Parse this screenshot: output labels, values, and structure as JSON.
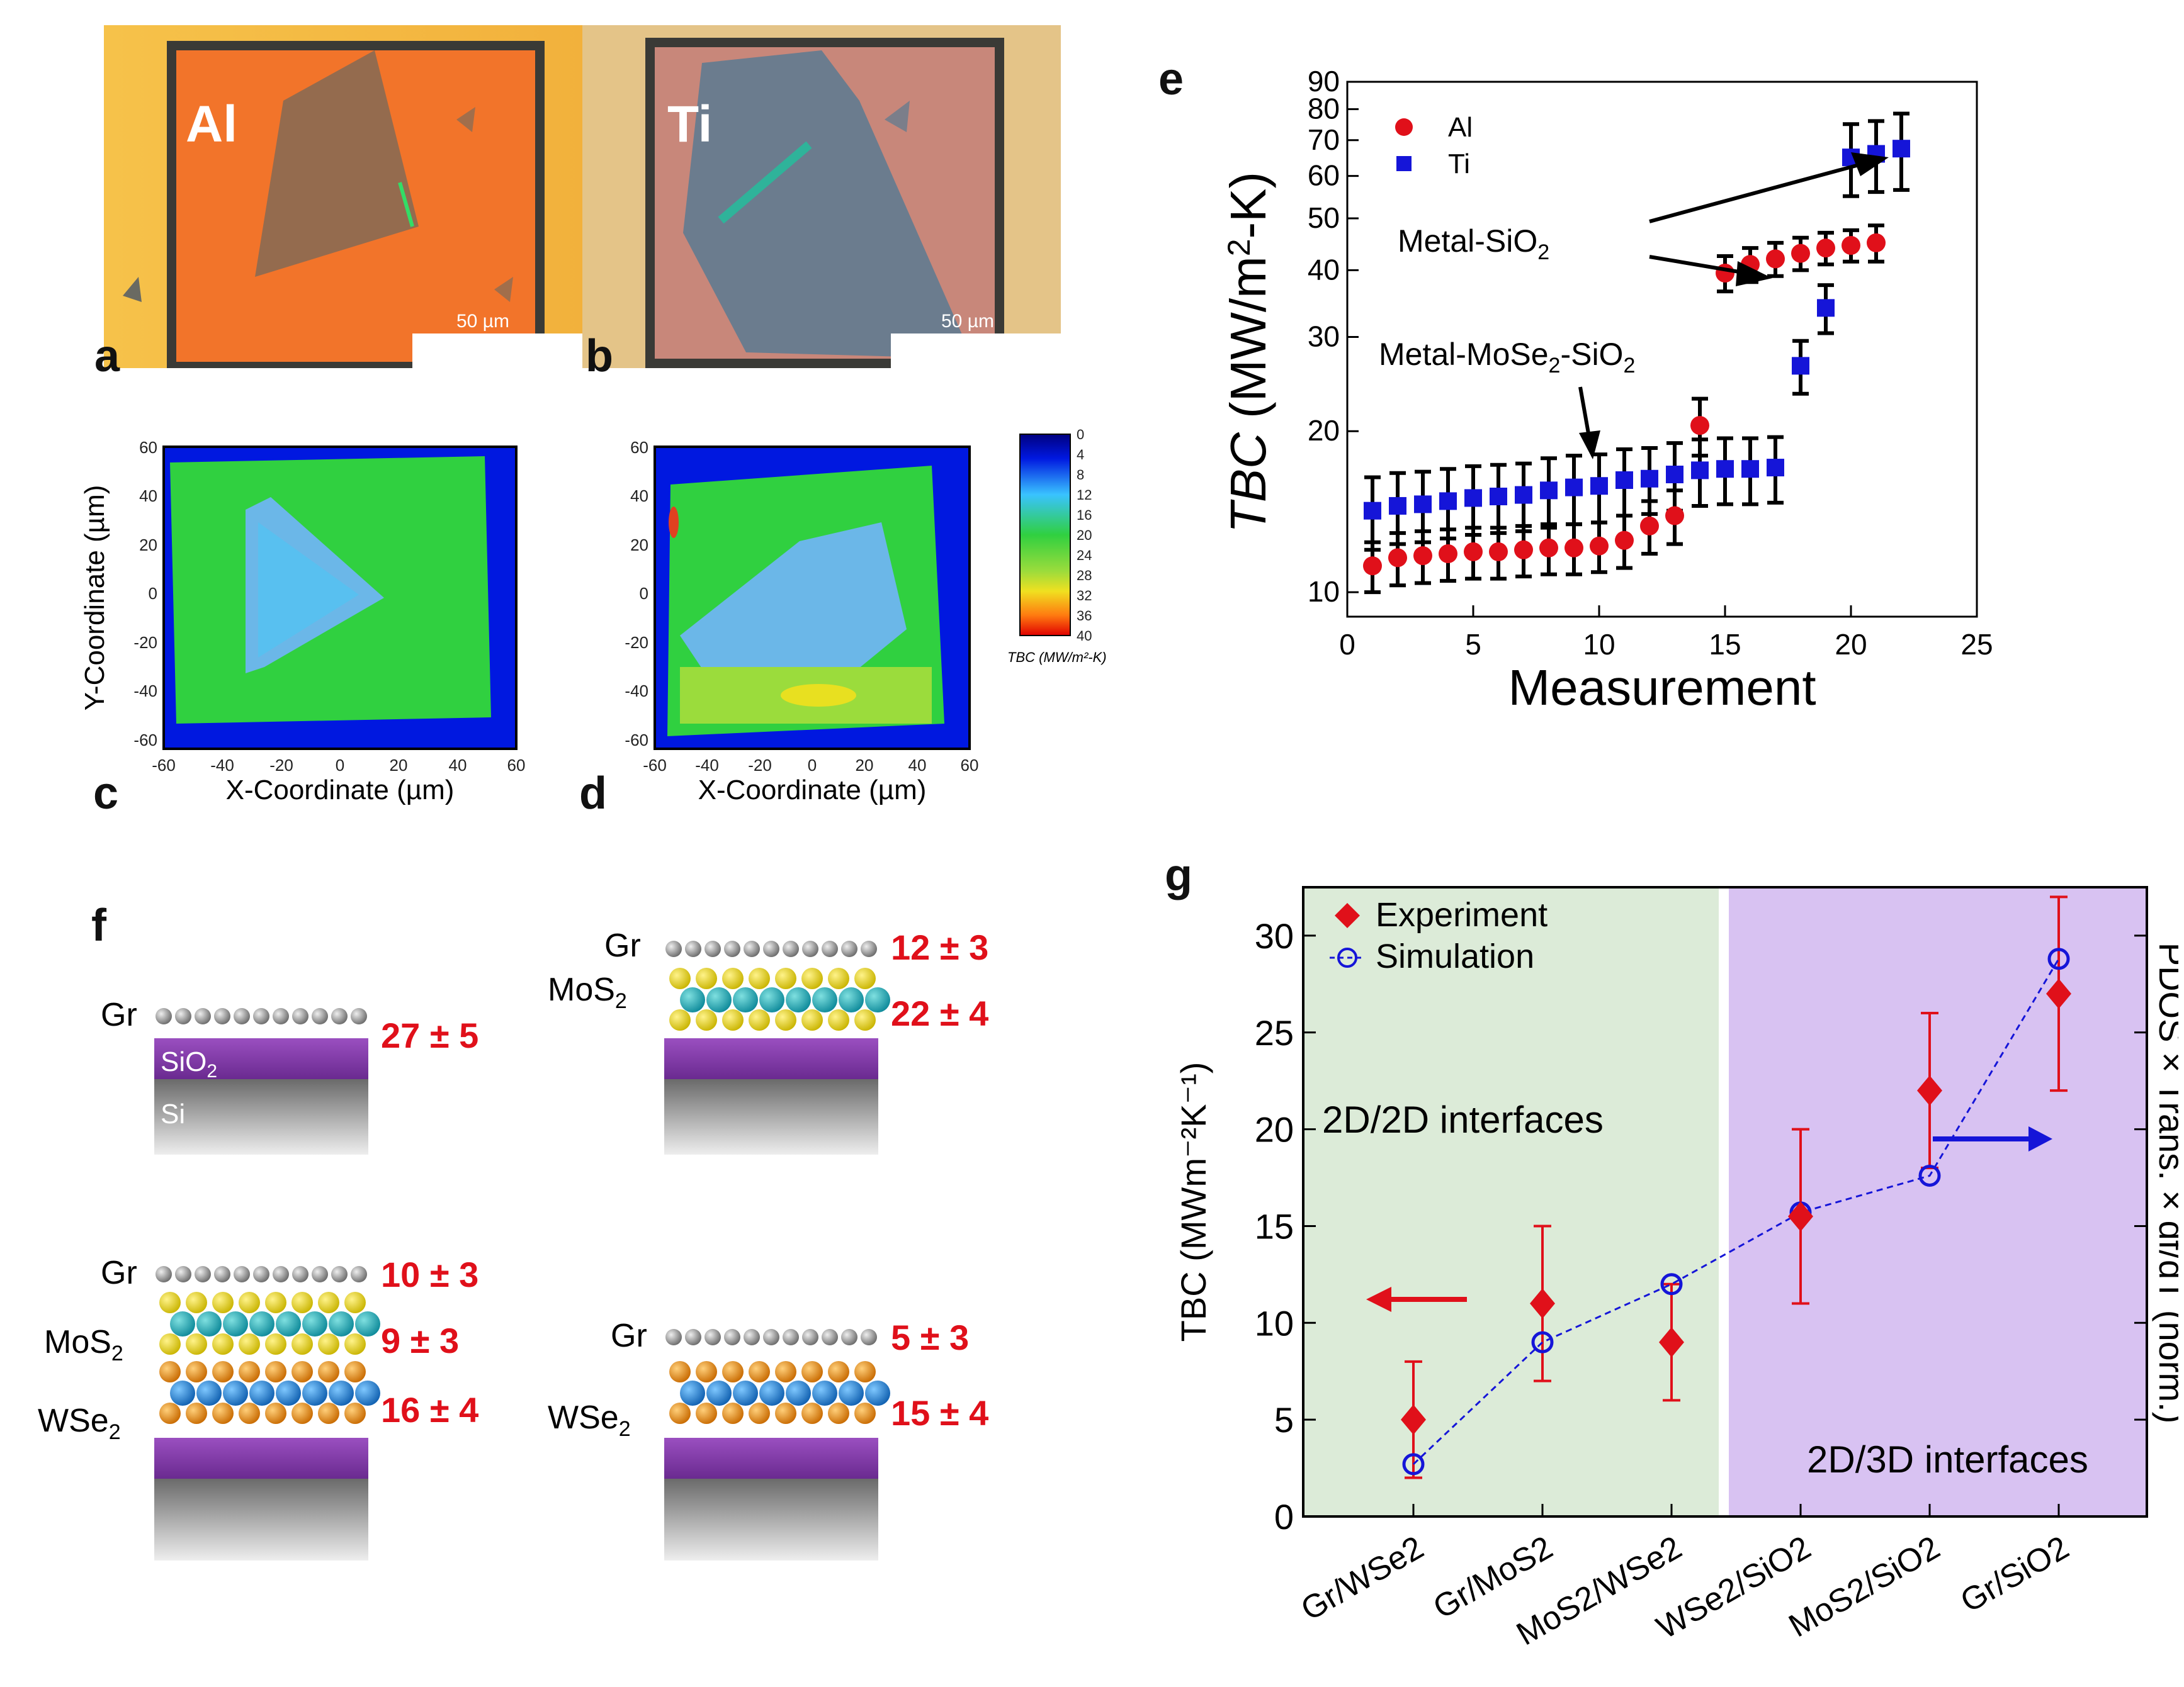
{
  "panels": {
    "a": {
      "letter": "a",
      "metal": "Al",
      "scale": "50 µm",
      "color": "#f07a2a"
    },
    "b": {
      "letter": "b",
      "metal": "Ti",
      "scale": "50 µm",
      "color": "#c98a7a"
    },
    "c": {
      "letter": "c",
      "xlabel": "X-Coordinate (µm)",
      "ylabel": "Y-Coordinate (µm)",
      "ticks": [
        "-60",
        "-40",
        "-20",
        "0",
        "20",
        "40",
        "60"
      ]
    },
    "d": {
      "letter": "d",
      "xlabel": "X-Coordinate (µm)",
      "ticks": [
        "-60",
        "-40",
        "-20",
        "0",
        "20",
        "40",
        "60"
      ]
    },
    "colorbar": {
      "ticks": [
        "0",
        "4",
        "8",
        "12",
        "16",
        "20",
        "24",
        "28",
        "32",
        "36",
        "40"
      ],
      "label": "TBC (MW/m²-K)"
    },
    "e": {
      "letter": "e"
    },
    "f": {
      "letter": "f",
      "stacks": [
        {
          "layers": [
            "Gr",
            "SiO2",
            "Si"
          ],
          "values": [
            "27 ± 5"
          ]
        },
        {
          "layers": [
            "Gr",
            "MoS2"
          ],
          "values": [
            "12 ± 3",
            "22 ± 4"
          ]
        },
        {
          "layers": [
            "Gr",
            "MoS2",
            "WSe2"
          ],
          "values": [
            "10 ± 3",
            "9 ± 3",
            "16 ± 4"
          ]
        },
        {
          "layers": [
            "Gr",
            "WSe2"
          ],
          "values": [
            "5 ± 3",
            "15 ± 4"
          ]
        }
      ]
    },
    "g": {
      "letter": "g"
    }
  },
  "chart_data": [
    {
      "type": "scatter",
      "panel": "e",
      "title": "",
      "xlabel": "Measurement",
      "ylabel": "TBC (MW/m²-K)",
      "yscale": "log",
      "xlim": [
        0,
        25
      ],
      "ylim": [
        9,
        90
      ],
      "xticks": [
        "0",
        "5",
        "10",
        "15",
        "20",
        "25"
      ],
      "yticks": [
        "10",
        "20",
        "30",
        "40",
        "50",
        "60",
        "70",
        "80",
        "90"
      ],
      "legend": "top-left",
      "series": [
        {
          "name": "Al",
          "color": "#e0101a",
          "marker": "circle",
          "x": [
            1,
            2,
            3,
            4,
            5,
            6,
            7,
            8,
            9,
            10,
            11,
            12,
            13,
            14,
            15,
            16,
            17,
            18,
            19,
            20,
            21
          ],
          "y": [
            11.2,
            11.6,
            11.7,
            11.8,
            11.9,
            11.9,
            12.0,
            12.1,
            12.1,
            12.2,
            12.5,
            13.3,
            13.9,
            20.5,
            39.5,
            41.0,
            42.0,
            43.0,
            44.0,
            44.5,
            45.0
          ],
          "err": [
            1.2,
            1.3,
            1.3,
            1.3,
            1.3,
            1.3,
            1.3,
            1.3,
            1.3,
            1.3,
            1.4,
            1.5,
            1.6,
            2.5,
            3,
            3,
            3,
            3,
            3,
            3,
            3.5
          ]
        },
        {
          "name": "Ti",
          "color": "#1515d8",
          "marker": "square",
          "x": [
            1,
            2,
            3,
            4,
            5,
            6,
            7,
            8,
            9,
            10,
            11,
            12,
            13,
            14,
            15,
            16,
            17,
            18,
            19,
            20,
            21,
            22
          ],
          "y": [
            14.2,
            14.5,
            14.6,
            14.8,
            15.0,
            15.1,
            15.2,
            15.5,
            15.7,
            15.8,
            16.2,
            16.3,
            16.6,
            16.9,
            17.0,
            17.0,
            17.1,
            26.5,
            34.0,
            65.0,
            66.0,
            67.5
          ],
          "err": [
            2.2,
            2.2,
            2.2,
            2.2,
            2.2,
            2.2,
            2.2,
            2.3,
            2.3,
            2.3,
            2.3,
            2.3,
            2.4,
            2.4,
            2.4,
            2.4,
            2.4,
            3,
            3.5,
            10,
            10,
            11
          ]
        }
      ],
      "annotations": [
        "Metal-SiO2",
        "Metal-MoSe2-SiO2"
      ]
    },
    {
      "type": "scatter",
      "panel": "g",
      "title": "",
      "xlabel": "",
      "ylabel": "TBC (MWm⁻²K⁻¹)",
      "ylabel_right": "PDOS × Trans. × df/dT (norm.)",
      "categories": [
        "Gr/WSe2",
        "Gr/MoS2",
        "MoS2/WSe2",
        "WSe2/SiO2",
        "MoS2/SiO2",
        "Gr/SiO2"
      ],
      "ylim": [
        0,
        32.5
      ],
      "yticks": [
        "0",
        "5",
        "10",
        "15",
        "20",
        "25",
        "30"
      ],
      "legend": "top-left",
      "regions": [
        "2D/2D interfaces",
        "2D/3D interfaces"
      ],
      "series": [
        {
          "name": "Experiment",
          "color": "#e0101a",
          "marker": "diamond",
          "values": [
            5,
            11,
            9,
            15.5,
            22,
            27
          ],
          "err": [
            3,
            4,
            3,
            4.5,
            4,
            5
          ]
        },
        {
          "name": "Simulation",
          "color": "#1515d8",
          "marker": "open-circle",
          "values": [
            2.7,
            9,
            12,
            15.7,
            17.6,
            28.8
          ]
        }
      ]
    }
  ]
}
